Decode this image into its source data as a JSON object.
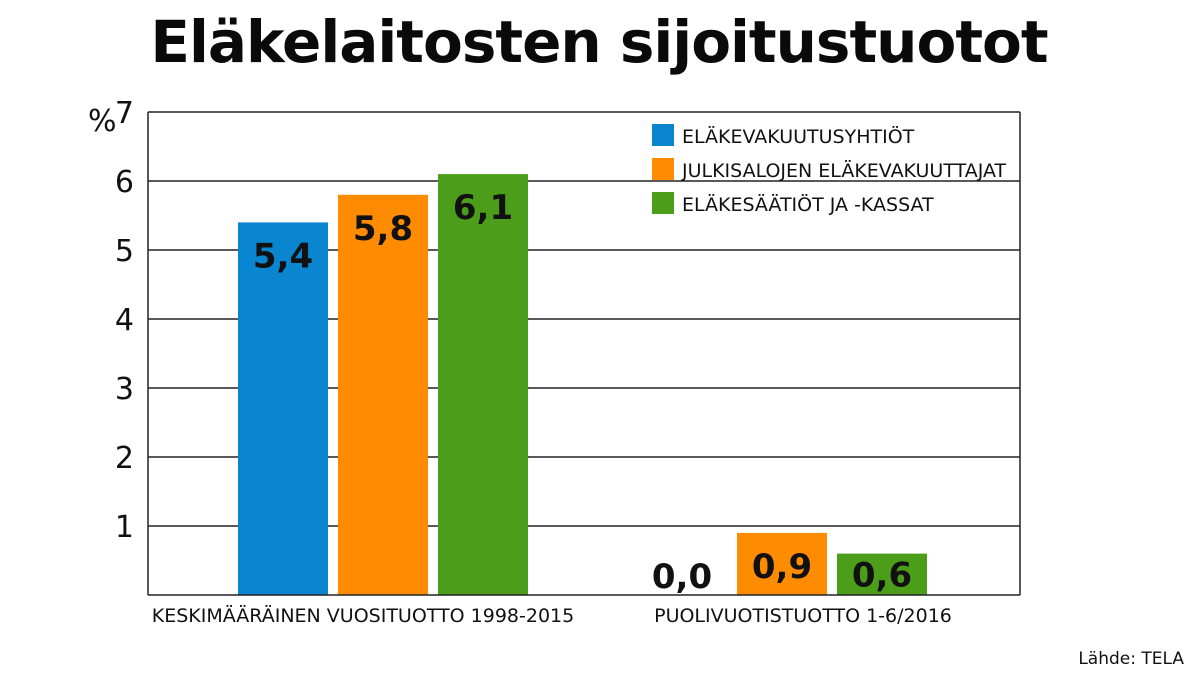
{
  "title": "Eläkelaitosten sijoitustuotot",
  "source": "Lähde: TELA",
  "chart_data": {
    "type": "bar",
    "title": "Eläkelaitosten sijoitustuotot",
    "unit_label": "%",
    "ylim": [
      0,
      7
    ],
    "yticks": [
      "1",
      "2",
      "3",
      "4",
      "5",
      "6",
      "7"
    ],
    "grid": true,
    "legend_position": "top-right",
    "categories": [
      "KESKIMÄÄRÄINEN VUOSITUOTTO 1998-2015",
      "PUOLIVUOTISTUOTTO 1-6/2016"
    ],
    "series": [
      {
        "name": "ELÄKEVAKUUTUSYHTIÖT",
        "color": "#0a85d0",
        "values": [
          5.4,
          0.0
        ],
        "labels": [
          "5,4",
          "0,0"
        ]
      },
      {
        "name": "JULKISALOJEN ELÄKEVAKUUTTAJAT",
        "color": "#ff8c00",
        "values": [
          5.8,
          0.9
        ],
        "labels": [
          "5,8",
          "0,9"
        ]
      },
      {
        "name": "ELÄKESÄÄTIÖT JA -KASSAT",
        "color": "#4c9e1a",
        "values": [
          6.1,
          0.6
        ],
        "labels": [
          "6,1",
          "0,6"
        ]
      }
    ]
  }
}
